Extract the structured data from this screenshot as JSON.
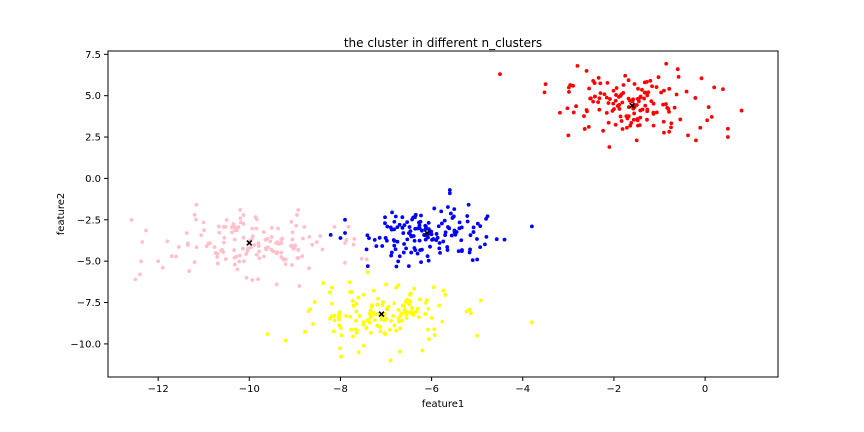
{
  "chart_data": {
    "type": "scatter",
    "title": "the cluster in different n_clusters",
    "xlabel": "feature1",
    "ylabel": "feature2",
    "xlim": [
      -13.1,
      1.6
    ],
    "ylim": [
      -12.0,
      7.7
    ],
    "xticks": [
      -12,
      -10,
      -8,
      -6,
      -4,
      -2,
      0
    ],
    "xtick_labels": [
      "−12",
      "−10",
      "−8",
      "−6",
      "−4",
      "−2",
      "0"
    ],
    "yticks": [
      -10.0,
      -7.5,
      -5.0,
      -2.5,
      0.0,
      2.5,
      5.0,
      7.5
    ],
    "ytick_labels": [
      "−10.0",
      "−7.5",
      "−5.0",
      "−2.5",
      "0.0",
      "2.5",
      "5.0",
      "7.5"
    ],
    "grid": false,
    "series": [
      {
        "color": "#ff0000",
        "center": [
          -1.6,
          4.4
        ],
        "spread": [
          0.75,
          0.85
        ],
        "count": 150,
        "points": [
          [
            -4.5,
            6.3
          ],
          [
            -2.8,
            6.8
          ],
          [
            -0.6,
            6.6
          ],
          [
            0.8,
            4.1
          ],
          [
            0.5,
            3.0
          ],
          [
            0.5,
            2.5
          ],
          [
            -1.5,
            2.3
          ],
          [
            -2.1,
            1.9
          ],
          [
            -3.0,
            2.6
          ],
          [
            -3.5,
            5.7
          ],
          [
            -0.2,
            2.3
          ],
          [
            -2.6,
            6.5
          ],
          [
            -1.2,
            5.9
          ],
          [
            0.2,
            5.5
          ]
        ]
      },
      {
        "color": "#0000ff",
        "center": [
          -6.1,
          -3.3
        ],
        "spread": [
          0.65,
          0.85
        ],
        "count": 150,
        "points": [
          [
            -7.9,
            -2.5
          ],
          [
            -7.9,
            -3.3
          ],
          [
            -3.8,
            -2.9
          ],
          [
            -5.6,
            -0.7
          ],
          [
            -5.6,
            -0.9
          ],
          [
            -4.4,
            -3.7
          ],
          [
            -6.5,
            -5.3
          ],
          [
            -7.4,
            -5.3
          ],
          [
            -5.0,
            -4.9
          ],
          [
            -8.0,
            -3.6
          ]
        ]
      },
      {
        "color": "#ffc0cb",
        "center": [
          -10.0,
          -3.9
        ],
        "spread": [
          0.95,
          0.85
        ],
        "count": 150,
        "points": [
          [
            -12.5,
            -6.1
          ],
          [
            -12.4,
            -5.8
          ],
          [
            -12.0,
            -5.0
          ],
          [
            -11.9,
            -5.4
          ],
          [
            -11.2,
            -2.2
          ],
          [
            -11.7,
            -4.7
          ],
          [
            -10.2,
            -1.9
          ],
          [
            -7.9,
            -5.1
          ],
          [
            -7.9,
            -3.9
          ],
          [
            -8.9,
            -6.5
          ],
          [
            -9.4,
            -6.4
          ],
          [
            -9.2,
            -4.9
          ],
          [
            -11.8,
            -3.8
          ]
        ]
      },
      {
        "color": "#ffff00",
        "center": [
          -7.1,
          -8.2
        ],
        "spread": [
          0.75,
          0.85
        ],
        "count": 150,
        "points": [
          [
            -3.8,
            -8.7
          ],
          [
            -9.6,
            -9.4
          ],
          [
            -9.2,
            -9.8
          ],
          [
            -7.6,
            -10.5
          ],
          [
            -6.9,
            -11.0
          ],
          [
            -6.2,
            -10.4
          ],
          [
            -7.0,
            -6.4
          ],
          [
            -8.6,
            -8.8
          ],
          [
            -5.0,
            -9.5
          ]
        ]
      }
    ],
    "centroids": [
      {
        "x": -1.6,
        "y": 4.4
      },
      {
        "x": -6.1,
        "y": -3.3
      },
      {
        "x": -10.0,
        "y": -3.9
      },
      {
        "x": -7.1,
        "y": -8.2
      }
    ],
    "centroid_color": "#000000"
  }
}
